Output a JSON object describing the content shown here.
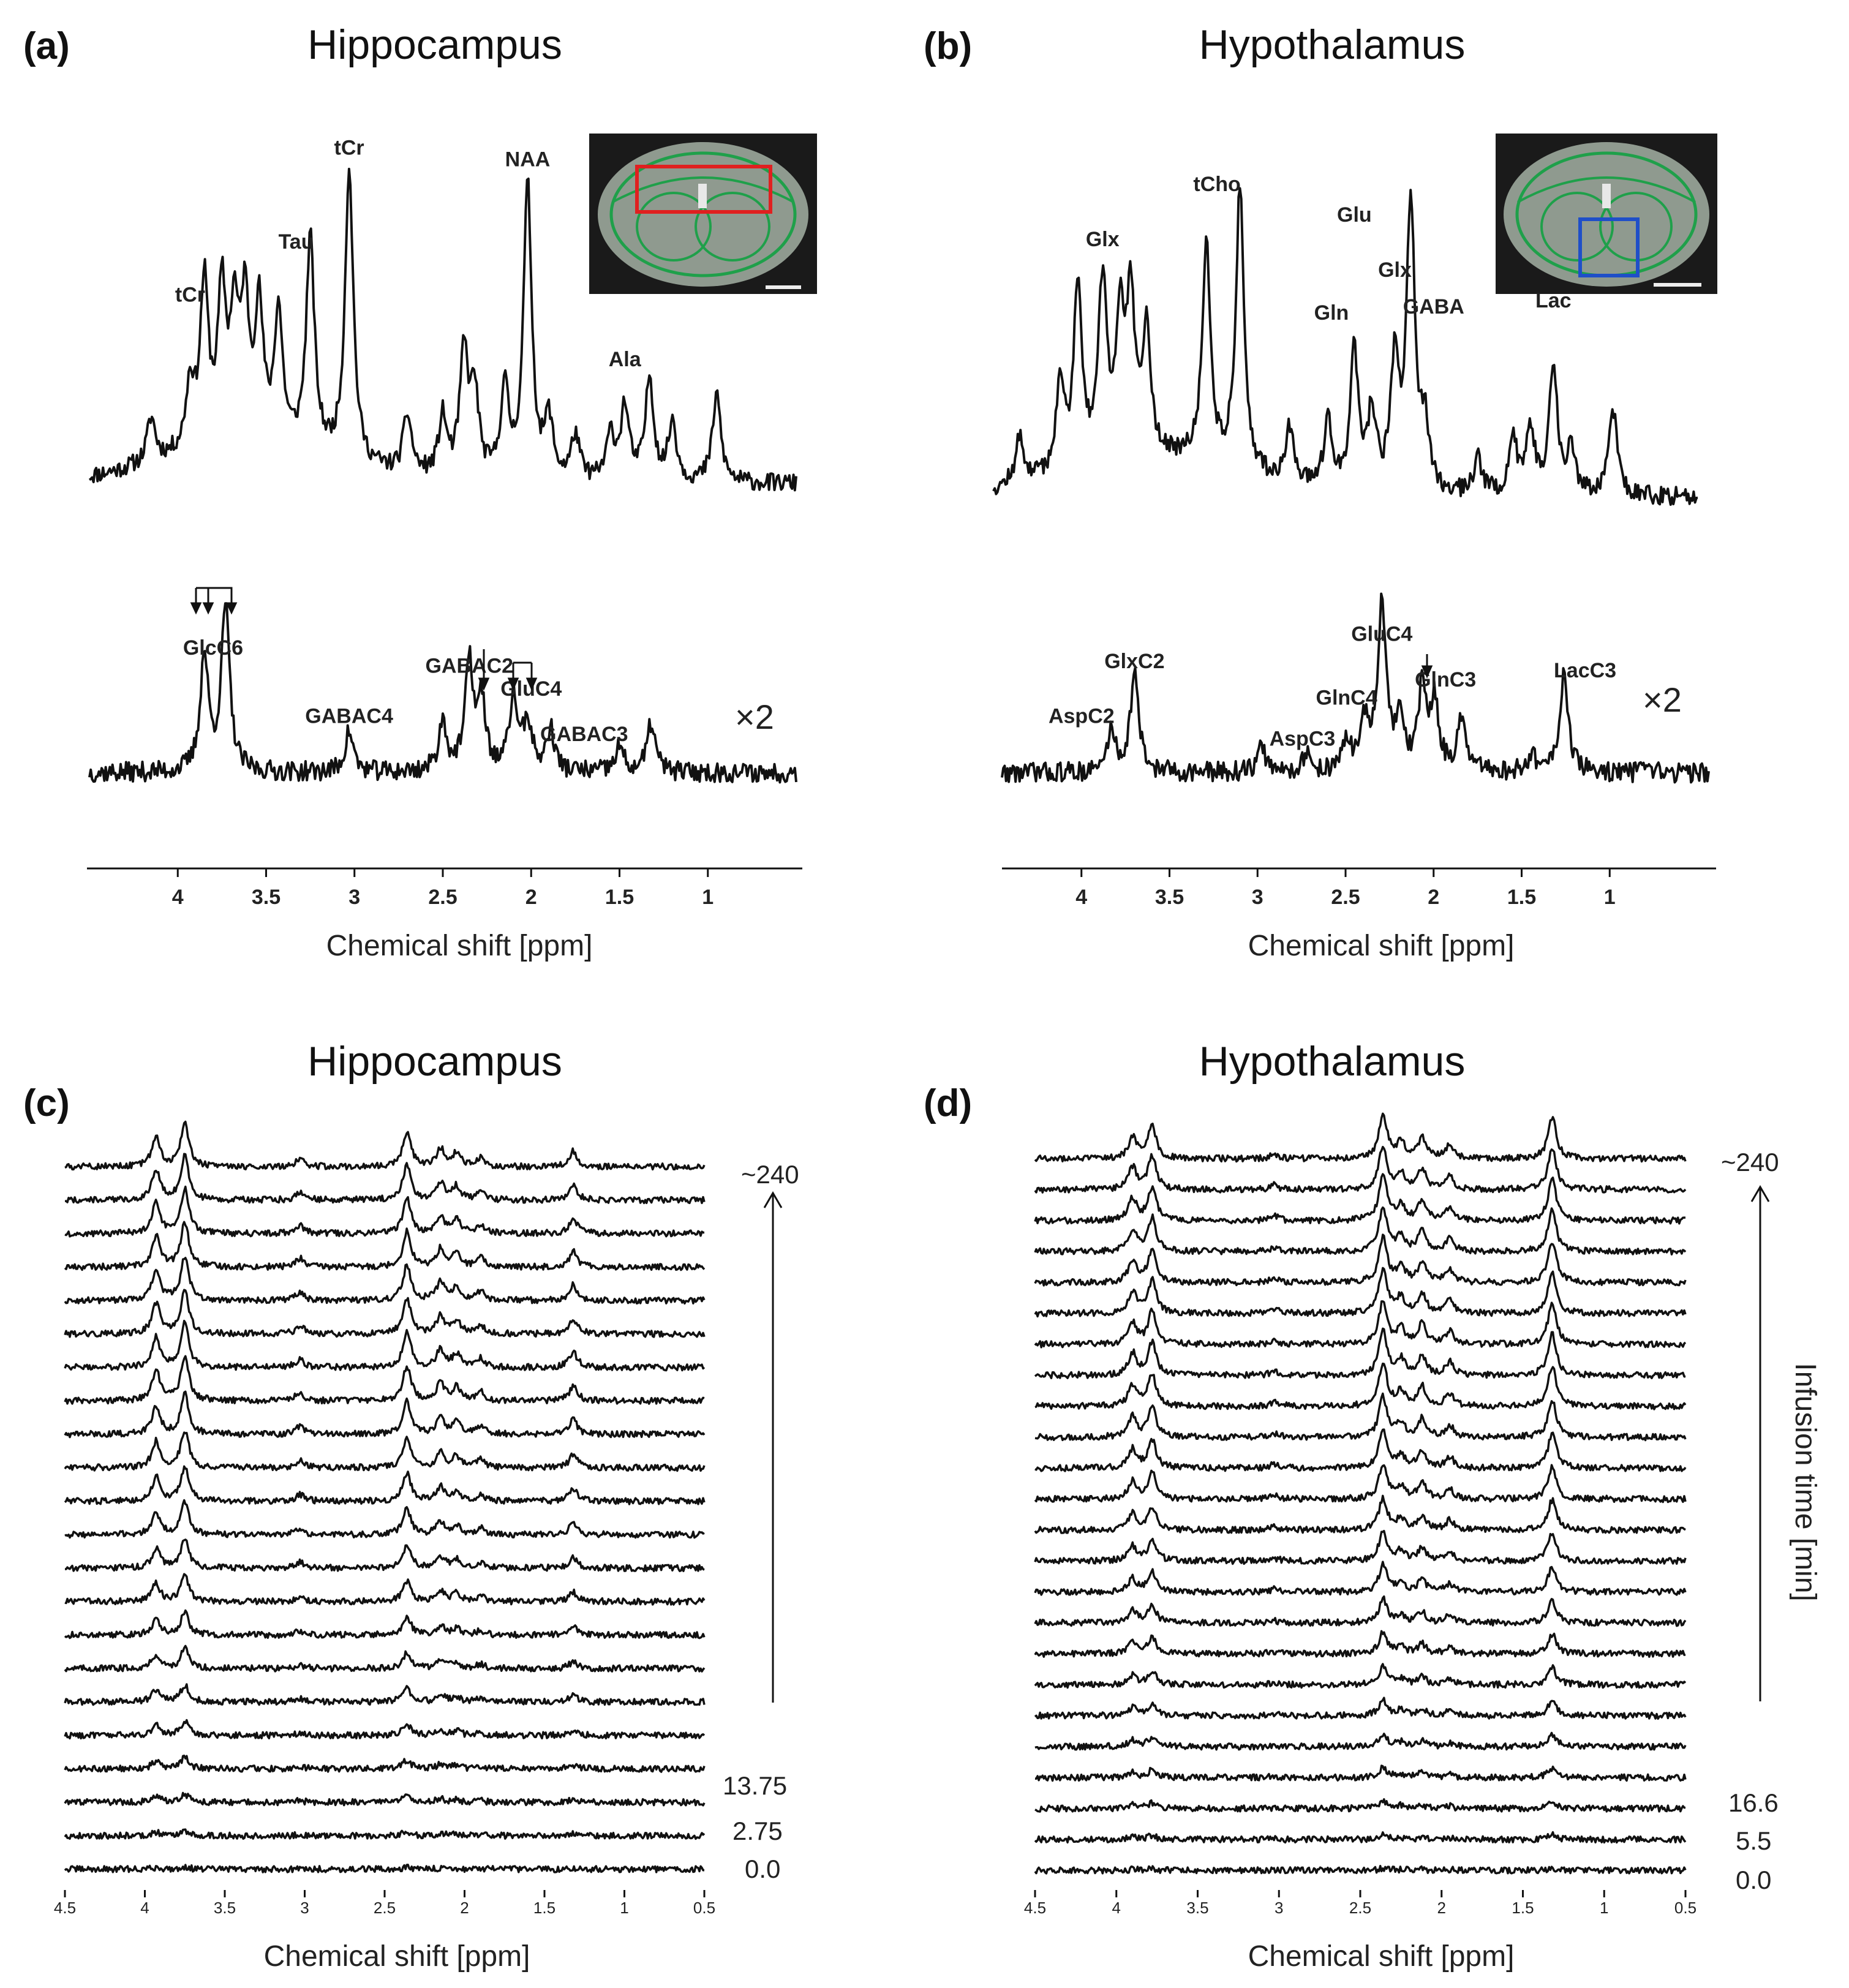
{
  "chart_data": [
    {
      "panel": "(a)",
      "title": "Hippocampus",
      "type": "line",
      "xlabel": "Chemical shift [ppm]",
      "xlim": [
        4.5,
        0.5
      ],
      "x_ticks": [
        "4",
        "3.5",
        "3",
        "2.5",
        "2",
        "1.5",
        "1"
      ],
      "series": [
        {
          "peaks": [
            {
              "ppm": 4.15,
              "h": 0.15
            },
            {
              "ppm": 3.93,
              "h": 0.22
            },
            {
              "ppm": 3.85,
              "h": 0.55
            },
            {
              "ppm": 3.75,
              "h": 0.5
            },
            {
              "ppm": 3.68,
              "h": 0.4
            },
            {
              "ppm": 3.62,
              "h": 0.45
            },
            {
              "ppm": 3.54,
              "h": 0.45
            },
            {
              "ppm": 3.43,
              "h": 0.45
            },
            {
              "ppm": 3.25,
              "h": 0.72
            },
            {
              "ppm": 3.03,
              "h": 1.0
            },
            {
              "ppm": 2.7,
              "h": 0.2
            },
            {
              "ppm": 2.5,
              "h": 0.2
            },
            {
              "ppm": 2.38,
              "h": 0.42
            },
            {
              "ppm": 2.32,
              "h": 0.28
            },
            {
              "ppm": 2.15,
              "h": 0.3
            },
            {
              "ppm": 2.02,
              "h": 1.0
            },
            {
              "ppm": 1.9,
              "h": 0.2
            },
            {
              "ppm": 1.75,
              "h": 0.15
            },
            {
              "ppm": 1.55,
              "h": 0.15
            },
            {
              "ppm": 1.47,
              "h": 0.25
            },
            {
              "ppm": 1.33,
              "h": 0.35
            },
            {
              "ppm": 1.2,
              "h": 0.2
            },
            {
              "ppm": 0.95,
              "h": 0.3
            }
          ]
        },
        {
          "scale": "×2",
          "peaks": [
            {
              "ppm": 3.85,
              "h": 0.7
            },
            {
              "ppm": 3.73,
              "h": 1.0
            },
            {
              "ppm": 3.03,
              "h": 0.25
            },
            {
              "ppm": 2.5,
              "h": 0.3
            },
            {
              "ppm": 2.35,
              "h": 0.65
            },
            {
              "ppm": 2.28,
              "h": 0.4
            },
            {
              "ppm": 2.1,
              "h": 0.45
            },
            {
              "ppm": 2.02,
              "h": 0.3
            },
            {
              "ppm": 1.89,
              "h": 0.25
            },
            {
              "ppm": 1.5,
              "h": 0.15
            },
            {
              "ppm": 1.32,
              "h": 0.3
            }
          ]
        }
      ],
      "annotations": {
        "spectrum": [
          {
            "text": "tCr",
            "ppm": 3.93,
            "dy": -0.62
          },
          {
            "text": "Tau",
            "ppm": 3.33,
            "dy": -0.8
          },
          {
            "text": "tCr",
            "ppm": 3.03,
            "dy": -1.12
          },
          {
            "text": "NAA",
            "ppm": 2.02,
            "dy": -1.08
          },
          {
            "text": "Ala",
            "ppm": 1.47,
            "dy": -0.4
          }
        ],
        "c13": [
          {
            "text": "GlcC6",
            "ppm": 3.8,
            "dy": -1.3
          },
          {
            "text": "GABAC4",
            "ppm": 3.03,
            "dy": -0.55
          },
          {
            "text": "GABAC2",
            "ppm": 2.35,
            "dy": -1.1
          },
          {
            "text": "GluC4",
            "ppm": 2.0,
            "dy": -0.85
          },
          {
            "text": "GABAC3",
            "ppm": 1.7,
            "dy": -0.35
          }
        ]
      }
    },
    {
      "panel": "(b)",
      "title": "Hypothalamus",
      "type": "line",
      "xlabel": "Chemical shift [ppm]",
      "xlim": [
        4.5,
        0.5
      ],
      "x_ticks": [
        "4",
        "3.5",
        "3",
        "2.5",
        "2",
        "1.5",
        "1"
      ],
      "series": [
        {
          "peaks": [
            {
              "ppm": 4.35,
              "h": 0.15
            },
            {
              "ppm": 4.12,
              "h": 0.28
            },
            {
              "ppm": 4.02,
              "h": 0.6
            },
            {
              "ppm": 3.88,
              "h": 0.58
            },
            {
              "ppm": 3.78,
              "h": 0.45
            },
            {
              "ppm": 3.72,
              "h": 0.48
            },
            {
              "ppm": 3.63,
              "h": 0.4
            },
            {
              "ppm": 3.29,
              "h": 0.72
            },
            {
              "ppm": 3.1,
              "h": 0.92
            },
            {
              "ppm": 2.82,
              "h": 0.18
            },
            {
              "ppm": 2.6,
              "h": 0.22
            },
            {
              "ppm": 2.45,
              "h": 0.45
            },
            {
              "ppm": 2.35,
              "h": 0.25
            },
            {
              "ppm": 2.22,
              "h": 0.42
            },
            {
              "ppm": 2.13,
              "h": 0.95
            },
            {
              "ppm": 2.05,
              "h": 0.2
            },
            {
              "ppm": 1.75,
              "h": 0.12
            },
            {
              "ppm": 1.55,
              "h": 0.18
            },
            {
              "ppm": 1.45,
              "h": 0.22
            },
            {
              "ppm": 1.32,
              "h": 0.42
            },
            {
              "ppm": 1.22,
              "h": 0.15
            },
            {
              "ppm": 0.98,
              "h": 0.28
            }
          ]
        },
        {
          "scale": "×2",
          "peaks": [
            {
              "ppm": 3.88,
              "h": 0.25
            },
            {
              "ppm": 3.75,
              "h": 0.6
            },
            {
              "ppm": 3.03,
              "h": 0.15
            },
            {
              "ppm": 2.78,
              "h": 0.1
            },
            {
              "ppm": 2.55,
              "h": 0.18
            },
            {
              "ppm": 2.45,
              "h": 0.3
            },
            {
              "ppm": 2.35,
              "h": 1.0
            },
            {
              "ppm": 2.25,
              "h": 0.3
            },
            {
              "ppm": 2.12,
              "h": 0.5
            },
            {
              "ppm": 2.05,
              "h": 0.4
            },
            {
              "ppm": 1.9,
              "h": 0.3
            },
            {
              "ppm": 1.32,
              "h": 0.6
            },
            {
              "ppm": 1.5,
              "h": 0.1
            }
          ]
        }
      ],
      "annotations": {
        "spectrum": [
          {
            "text": "Glx",
            "ppm": 3.88,
            "dy": -0.82
          },
          {
            "text": "tCho",
            "ppm": 3.23,
            "dy": -1.0
          },
          {
            "text": "Glu",
            "ppm": 2.45,
            "dy": -0.9
          },
          {
            "text": "Gln",
            "ppm": 2.58,
            "dy": -0.58
          },
          {
            "text": "Glx",
            "ppm": 2.22,
            "dy": -0.72
          },
          {
            "text": "GABA",
            "ppm": 2.0,
            "dy": -0.6
          },
          {
            "text": "Lac",
            "ppm": 1.32,
            "dy": -0.62
          }
        ],
        "c13": [
          {
            "text": "GlxC2",
            "ppm": 3.75,
            "dy": -1.15
          },
          {
            "text": "AspC2",
            "ppm": 4.05,
            "dy": -0.55
          },
          {
            "text": "GluC4",
            "ppm": 2.35,
            "dy": -1.45
          },
          {
            "text": "GlnC4",
            "ppm": 2.55,
            "dy": -0.75
          },
          {
            "text": "AspC3",
            "ppm": 2.8,
            "dy": -0.3
          },
          {
            "text": "GlnC3",
            "ppm": 1.99,
            "dy": -0.95
          },
          {
            "text": "LacC3",
            "ppm": 1.2,
            "dy": -1.05
          }
        ]
      }
    },
    {
      "panel": "(c)",
      "title": "Hippocampus",
      "type": "line",
      "xlabel": "Chemical shift [ppm]",
      "xlim": [
        4.5,
        0.5
      ],
      "x_ticks": [
        "4.5",
        "4",
        "3.5",
        "3",
        "2.5",
        "2",
        "1.5",
        "1",
        "0.5"
      ],
      "time_labels": [
        "~240",
        "13.75",
        "2.75",
        "0.0"
      ],
      "stacked_traces": 22,
      "peaks": [
        {
          "ppm": 3.93,
          "h": 0.7
        },
        {
          "ppm": 3.75,
          "h": 1.0
        },
        {
          "ppm": 3.03,
          "h": 0.2
        },
        {
          "ppm": 2.36,
          "h": 0.8
        },
        {
          "ppm": 2.15,
          "h": 0.4
        },
        {
          "ppm": 2.05,
          "h": 0.3
        },
        {
          "ppm": 1.9,
          "h": 0.2
        },
        {
          "ppm": 1.32,
          "h": 0.35
        }
      ]
    },
    {
      "panel": "(d)",
      "title": "Hypothalamus",
      "type": "line",
      "xlabel": "Chemical shift [ppm]",
      "xlim": [
        4.5,
        0.5
      ],
      "x_ticks": [
        "4.5",
        "4",
        "3.5",
        "3",
        "2.5",
        "2",
        "1.5",
        "1",
        "0.5"
      ],
      "time_labels": [
        "~240",
        "16.6",
        "5.5",
        "0.0"
      ],
      "ylabel": "Infusion time [min]",
      "stacked_traces": 24,
      "peaks": [
        {
          "ppm": 3.9,
          "h": 0.5
        },
        {
          "ppm": 3.78,
          "h": 0.75
        },
        {
          "ppm": 3.03,
          "h": 0.1
        },
        {
          "ppm": 2.36,
          "h": 1.0
        },
        {
          "ppm": 2.25,
          "h": 0.35
        },
        {
          "ppm": 2.12,
          "h": 0.45
        },
        {
          "ppm": 1.95,
          "h": 0.3
        },
        {
          "ppm": 1.32,
          "h": 0.95
        }
      ]
    }
  ],
  "colors": {
    "trace": "#111111",
    "hippocampus_roi": "#e02020",
    "hypothalamus_roi": "#1f4fc8",
    "atlas": "#1fa04a"
  }
}
